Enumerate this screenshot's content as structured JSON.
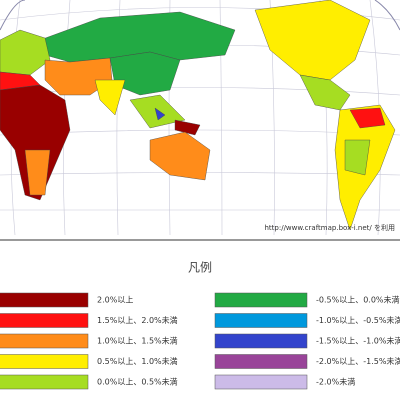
{
  "map": {
    "credit": "http://www.craftmap.box-i.net/ を利用"
  },
  "legend": {
    "title": "凡例",
    "items": [
      {
        "label": "2.0%以上",
        "color": "#990000"
      },
      {
        "label": "1.5%以上、2.0%未満",
        "color": "#ff1111"
      },
      {
        "label": "1.0%以上、1.5%未満",
        "color": "#ff8c1a"
      },
      {
        "label": "0.5%以上、1.0%未満",
        "color": "#ffee00"
      },
      {
        "label": "0.0%以上、0.5%未満",
        "color": "#a6dd22"
      },
      {
        "label": "-0.5%以上、0.0%未満",
        "color": "#22aa44"
      },
      {
        "label": "-1.0%以上、-0.5%未満",
        "color": "#0099dd"
      },
      {
        "label": "-1.5%以上、-1.0%未満",
        "color": "#3344cc"
      },
      {
        "label": "-2.0%以上、-1.5%未満",
        "color": "#994499"
      },
      {
        "label": "-2.0%未満",
        "color": "#ccbbe8"
      }
    ]
  }
}
